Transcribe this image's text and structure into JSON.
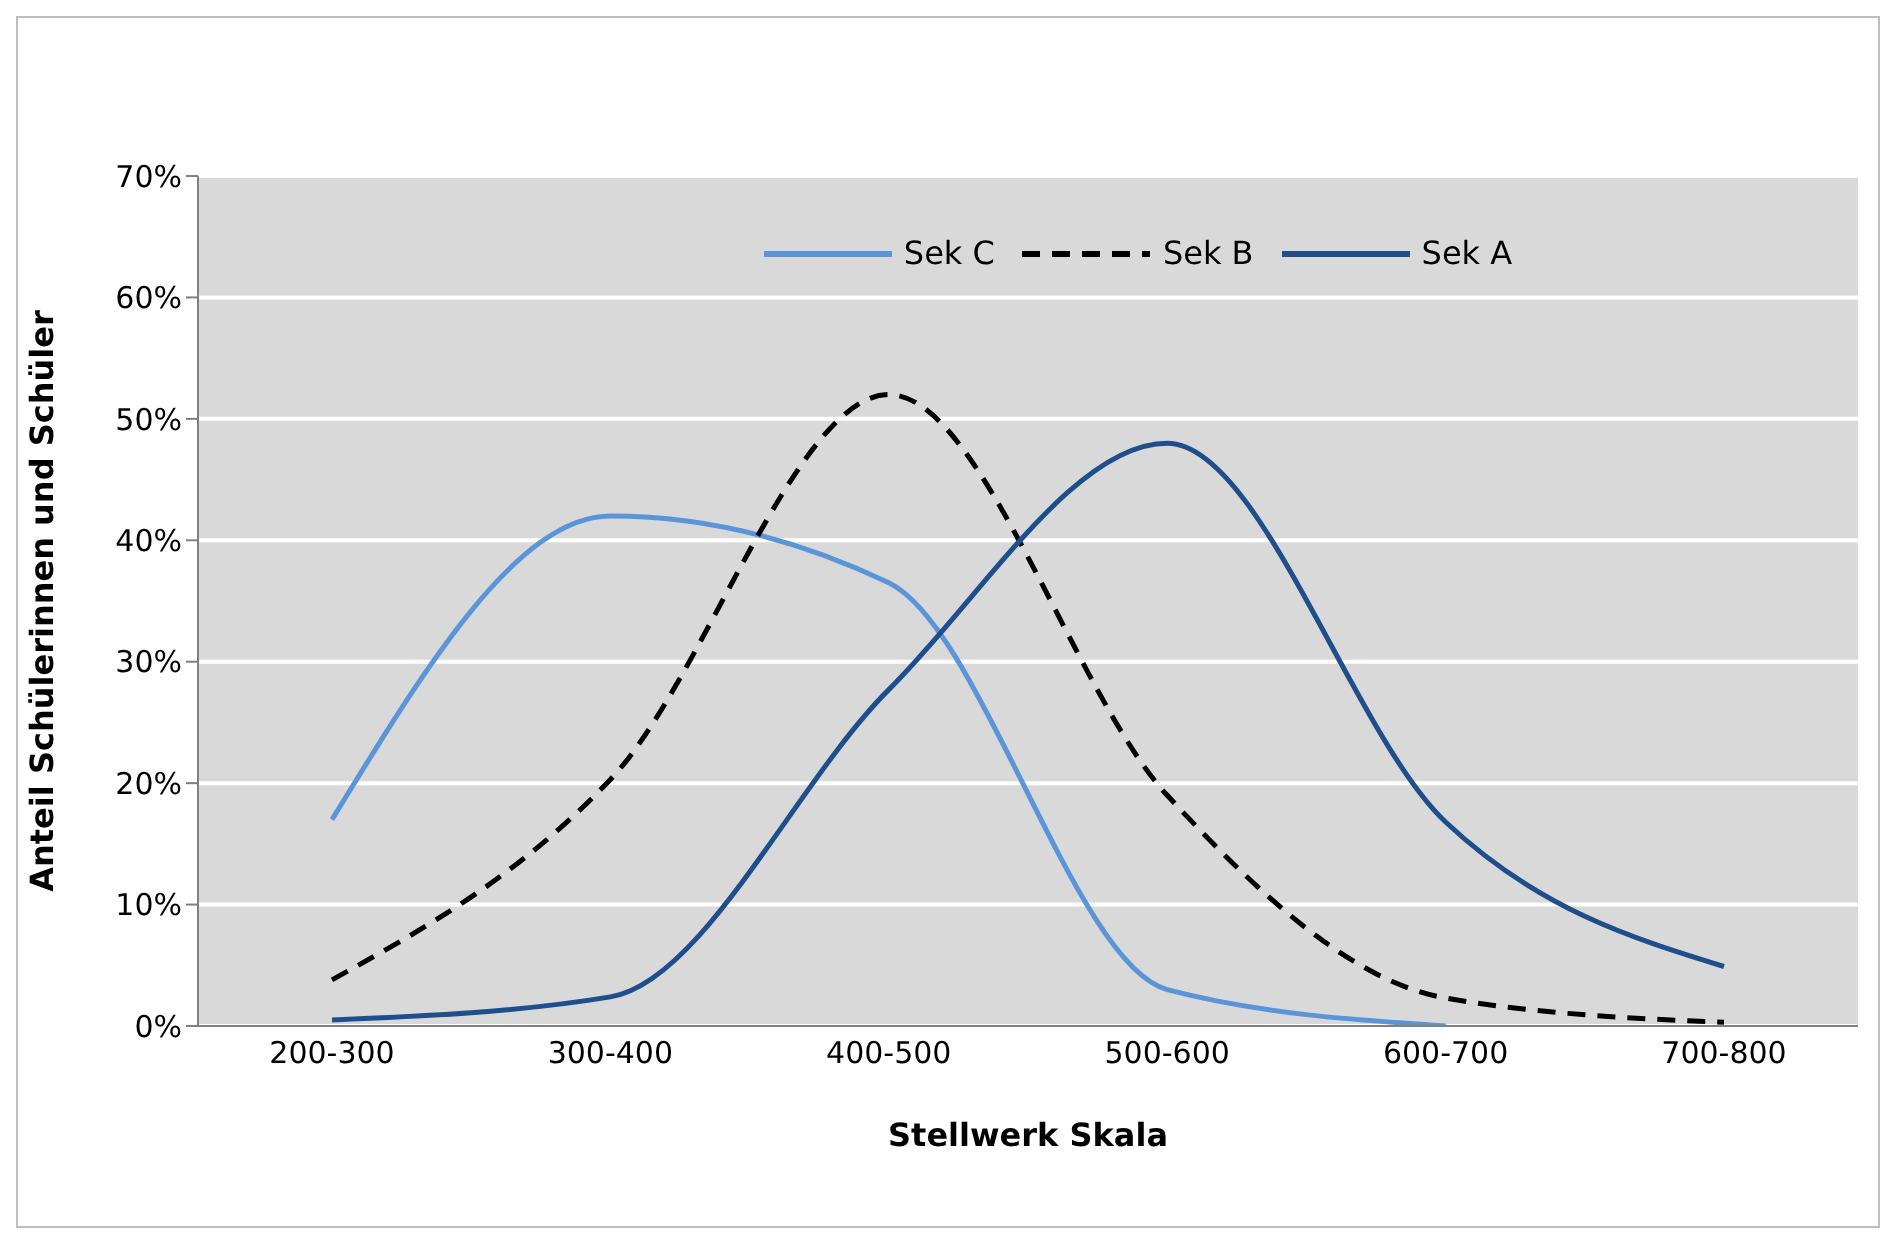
{
  "chart_data": {
    "type": "line",
    "xlabel": "Stellwerk Skala",
    "ylabel": "Anteil Schülerinnen und Schüler",
    "categories": [
      "200-300",
      "300-400",
      "400-500",
      "500-600",
      "600-700",
      "700-800"
    ],
    "series": [
      {
        "name": "Sek C",
        "color": "#5b95d9",
        "values": [
          17,
          42,
          36.5,
          3,
          0,
          null
        ]
      },
      {
        "name": "Sek B",
        "color": "#000000",
        "line_style": "dashed",
        "values": [
          3.8,
          20.3,
          52,
          19,
          2.3,
          0.3
        ]
      },
      {
        "name": "Sek A",
        "color": "#1f4e8c",
        "values": [
          0.5,
          2.4,
          27.7,
          48,
          16.8,
          4.9
        ]
      }
    ],
    "ylim": [
      0,
      70
    ],
    "yticks": [
      {
        "value": 0,
        "label": "0%"
      },
      {
        "value": 10,
        "label": "10%"
      },
      {
        "value": 20,
        "label": "20%"
      },
      {
        "value": 30,
        "label": "30%"
      },
      {
        "value": 40,
        "label": "40%"
      },
      {
        "value": 50,
        "label": "50%"
      },
      {
        "value": 60,
        "label": "60%"
      },
      {
        "value": 70,
        "label": "70%"
      }
    ],
    "grid": "y",
    "legend": "top",
    "marker": "none",
    "line_style": "solid"
  }
}
